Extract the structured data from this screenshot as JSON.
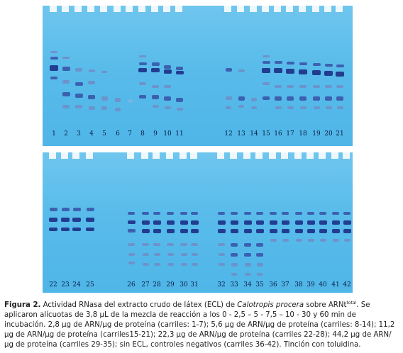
{
  "gels": {
    "top": {
      "lanes": [
        "1",
        "2",
        "3",
        "4",
        "5",
        "6",
        "7",
        "8",
        "9",
        "10",
        "11",
        "12",
        "13",
        "14",
        "15",
        "16",
        "17",
        "18",
        "19",
        "20",
        "21"
      ]
    },
    "bottom": {
      "lanes": [
        "22",
        "23",
        "24",
        "25",
        "26",
        "27",
        "28",
        "29",
        "30",
        "31",
        "32",
        "33",
        "34",
        "35",
        "36",
        "37",
        "38",
        "39",
        "40",
        "41",
        "42"
      ]
    }
  },
  "caption": {
    "label": "Figura 2.",
    "text_before_italic": " Actividad RNasa del extracto crudo de látex (ECL) de ",
    "species": "Calotropis procera",
    "text_after_italic": " sobre ARNt",
    "superscript": "total",
    "text_rest": ". Se aplicaron alícuotas de 3,8 µL de la mezcla de reacción a los 0 - 2,5 – 5 - 7,5 – 10 - 30 y 60 min de incubación. 2,8 µg de ARN/µg de proteína (carriles: 1-7); 5,6 µg de ARN/µg de proteína (carriles: 8-14); 11,2 µg de ARN/µg de proteína (carriles15-21); 22,3 µg de ARN/µg de proteína (carriles 22-28); 44,2 µg de ARN/µg de proteína (carriles 29-35); sin ECL, controles negativos (carriles 36-42). Tinción con toluidina."
  },
  "colors": {
    "gel": "#58bbea",
    "band_dark": "#1d2f86",
    "band_mid": "#3a56aa",
    "band_light": "#6f8fc8",
    "label": "#0a1a40"
  }
}
